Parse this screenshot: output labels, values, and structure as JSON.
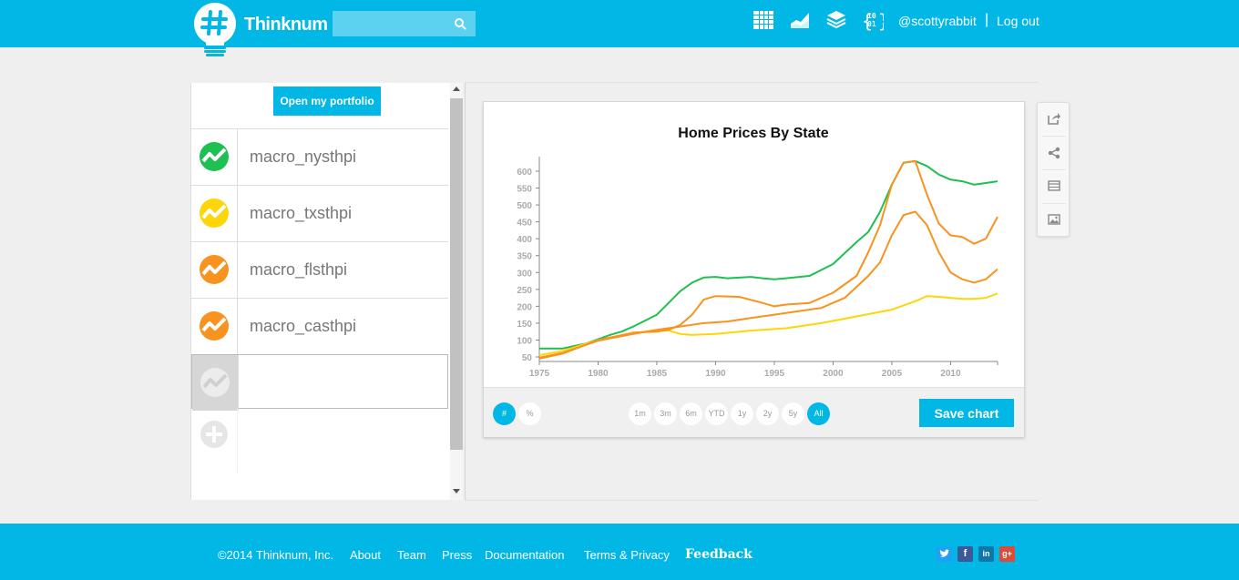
{
  "header": {
    "logo_text": "Thinknum",
    "search_placeholder": "",
    "nav_icons": [
      "table-icon",
      "area-chart-icon",
      "layers-icon",
      "binary-data-icon"
    ],
    "username": "@scottyrabbit",
    "separator": "|",
    "logout_label": "Log out"
  },
  "sidebar": {
    "portfolio_button": "Open my portfolio",
    "items": [
      {
        "label": "macro_nysthpi",
        "color": "#1ec051"
      },
      {
        "label": "macro_txsthpi",
        "color": "#fdd60a"
      },
      {
        "label": "macro_flsthpi",
        "color": "#f7931e"
      },
      {
        "label": "macro_casthpi",
        "color": "#f7931e"
      }
    ],
    "empty_item_label": ""
  },
  "chart_controls": {
    "mode_buttons": [
      "#",
      "%"
    ],
    "range_buttons": [
      "1m",
      "3m",
      "6m",
      "YTD",
      "1y",
      "2y",
      "5y",
      "All"
    ],
    "active_range": "All",
    "save_label": "Save chart"
  },
  "side_tools": [
    "export-icon",
    "share-icon",
    "table-view-icon",
    "image-icon"
  ],
  "footer": {
    "copyright": "©2014 Thinknum, Inc.",
    "links": [
      "About",
      "Team",
      "Press",
      "Documentation",
      "Terms & Privacy"
    ],
    "feedback": "Feedback",
    "social": [
      "twitter-icon",
      "facebook-icon",
      "linkedin-icon",
      "google-plus-icon"
    ]
  },
  "chart_data": {
    "type": "line",
    "title": "Home Prices By State",
    "xlim": [
      1975,
      2014
    ],
    "ylim": [
      50,
      620
    ],
    "x_ticks": [
      1975,
      1980,
      1985,
      1990,
      1995,
      2000,
      2005,
      2010
    ],
    "y_ticks": [
      50,
      100,
      150,
      200,
      250,
      300,
      350,
      400,
      450,
      500,
      550,
      600
    ],
    "series": [
      {
        "color": "#1ec051",
        "x": [
          1975,
          1977,
          1979,
          1981,
          1982,
          1983,
          1985,
          1986,
          1987,
          1988,
          1989,
          1990,
          1991,
          1993,
          1994,
          1995,
          1996,
          1998,
          2000,
          2002,
          2003,
          2004,
          2005,
          2006,
          2007,
          2008,
          2009,
          2010,
          2011,
          2012,
          2013,
          2014
        ],
        "y": [
          75,
          75,
          90,
          115,
          125,
          140,
          175,
          210,
          245,
          270,
          285,
          287,
          283,
          287,
          283,
          280,
          283,
          290,
          325,
          390,
          420,
          480,
          560,
          625,
          630,
          615,
          590,
          575,
          570,
          560,
          565,
          570
        ]
      },
      {
        "color": "#fdd60a",
        "x": [
          1975,
          1977,
          1980,
          1983,
          1985,
          1986,
          1987,
          1988,
          1990,
          1993,
          1996,
          1999,
          2002,
          2005,
          2007,
          2008,
          2009,
          2010,
          2011,
          2012,
          2013,
          2014
        ],
        "y": [
          55,
          68,
          100,
          120,
          130,
          128,
          118,
          115,
          118,
          128,
          135,
          150,
          170,
          190,
          215,
          230,
          228,
          225,
          222,
          222,
          225,
          238
        ]
      },
      {
        "color": "#f7931e",
        "x": [
          1975,
          1977,
          1980,
          1983,
          1985,
          1987,
          1989,
          1991,
          1993,
          1995,
          1997,
          1999,
          2001,
          2003,
          2004,
          2005,
          2006,
          2007,
          2008,
          2009,
          2010,
          2011,
          2012,
          2013,
          2014
        ],
        "y": [
          48,
          62,
          98,
          118,
          130,
          140,
          150,
          155,
          165,
          175,
          185,
          195,
          225,
          290,
          330,
          410,
          470,
          480,
          440,
          360,
          300,
          280,
          270,
          280,
          310
        ]
      },
      {
        "color": "#f7931e",
        "x": [
          1975,
          1977,
          1980,
          1983,
          1985,
          1986,
          1987,
          1988,
          1989,
          1990,
          1992,
          1994,
          1995,
          1996,
          1998,
          2000,
          2002,
          2003,
          2004,
          2005,
          2006,
          2007,
          2008,
          2009,
          2010,
          2011,
          2012,
          2013,
          2014
        ],
        "y": [
          45,
          60,
          100,
          122,
          125,
          130,
          145,
          175,
          220,
          230,
          228,
          210,
          200,
          205,
          210,
          240,
          290,
          360,
          440,
          560,
          625,
          630,
          530,
          445,
          410,
          405,
          385,
          400,
          465
        ]
      }
    ]
  }
}
